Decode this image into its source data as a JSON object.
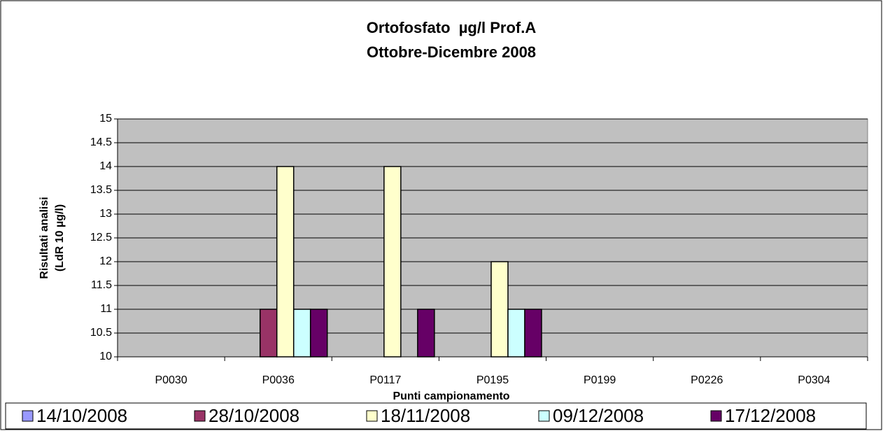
{
  "chart_data": {
    "type": "bar",
    "title": [
      "Ortofosfato  µg/l Prof.A",
      "Ottobre-Dicembre 2008"
    ],
    "y_label": [
      "Risultati analisi",
      "(LdR 10 µg/l)"
    ],
    "x_label": "Punti campionamento",
    "categories": [
      "P0030",
      "P0036",
      "P0117",
      "P0195",
      "P0199",
      "P0226",
      "P0304"
    ],
    "series": [
      {
        "name": "14/10/2008",
        "color": "#9999ff",
        "values": [
          null,
          null,
          null,
          null,
          null,
          null,
          null
        ]
      },
      {
        "name": "28/10/2008",
        "color": "#993366",
        "values": [
          null,
          11,
          null,
          null,
          null,
          null,
          null
        ]
      },
      {
        "name": "18/11/2008",
        "color": "#ffffcc",
        "values": [
          null,
          14,
          14,
          12,
          null,
          null,
          null
        ]
      },
      {
        "name": "09/12/2008",
        "color": "#ccffff",
        "values": [
          null,
          11,
          null,
          11,
          null,
          null,
          null
        ]
      },
      {
        "name": "17/12/2008",
        "color": "#660066",
        "values": [
          null,
          11,
          11,
          11,
          null,
          null,
          null
        ]
      }
    ],
    "ylim": [
      10,
      15
    ],
    "yticks": [
      10,
      10.5,
      11,
      11.5,
      12,
      12.5,
      13,
      13.5,
      14,
      14.5,
      15
    ],
    "grid": true,
    "plot_color": "#c0c0c0",
    "legend": "bottom"
  }
}
